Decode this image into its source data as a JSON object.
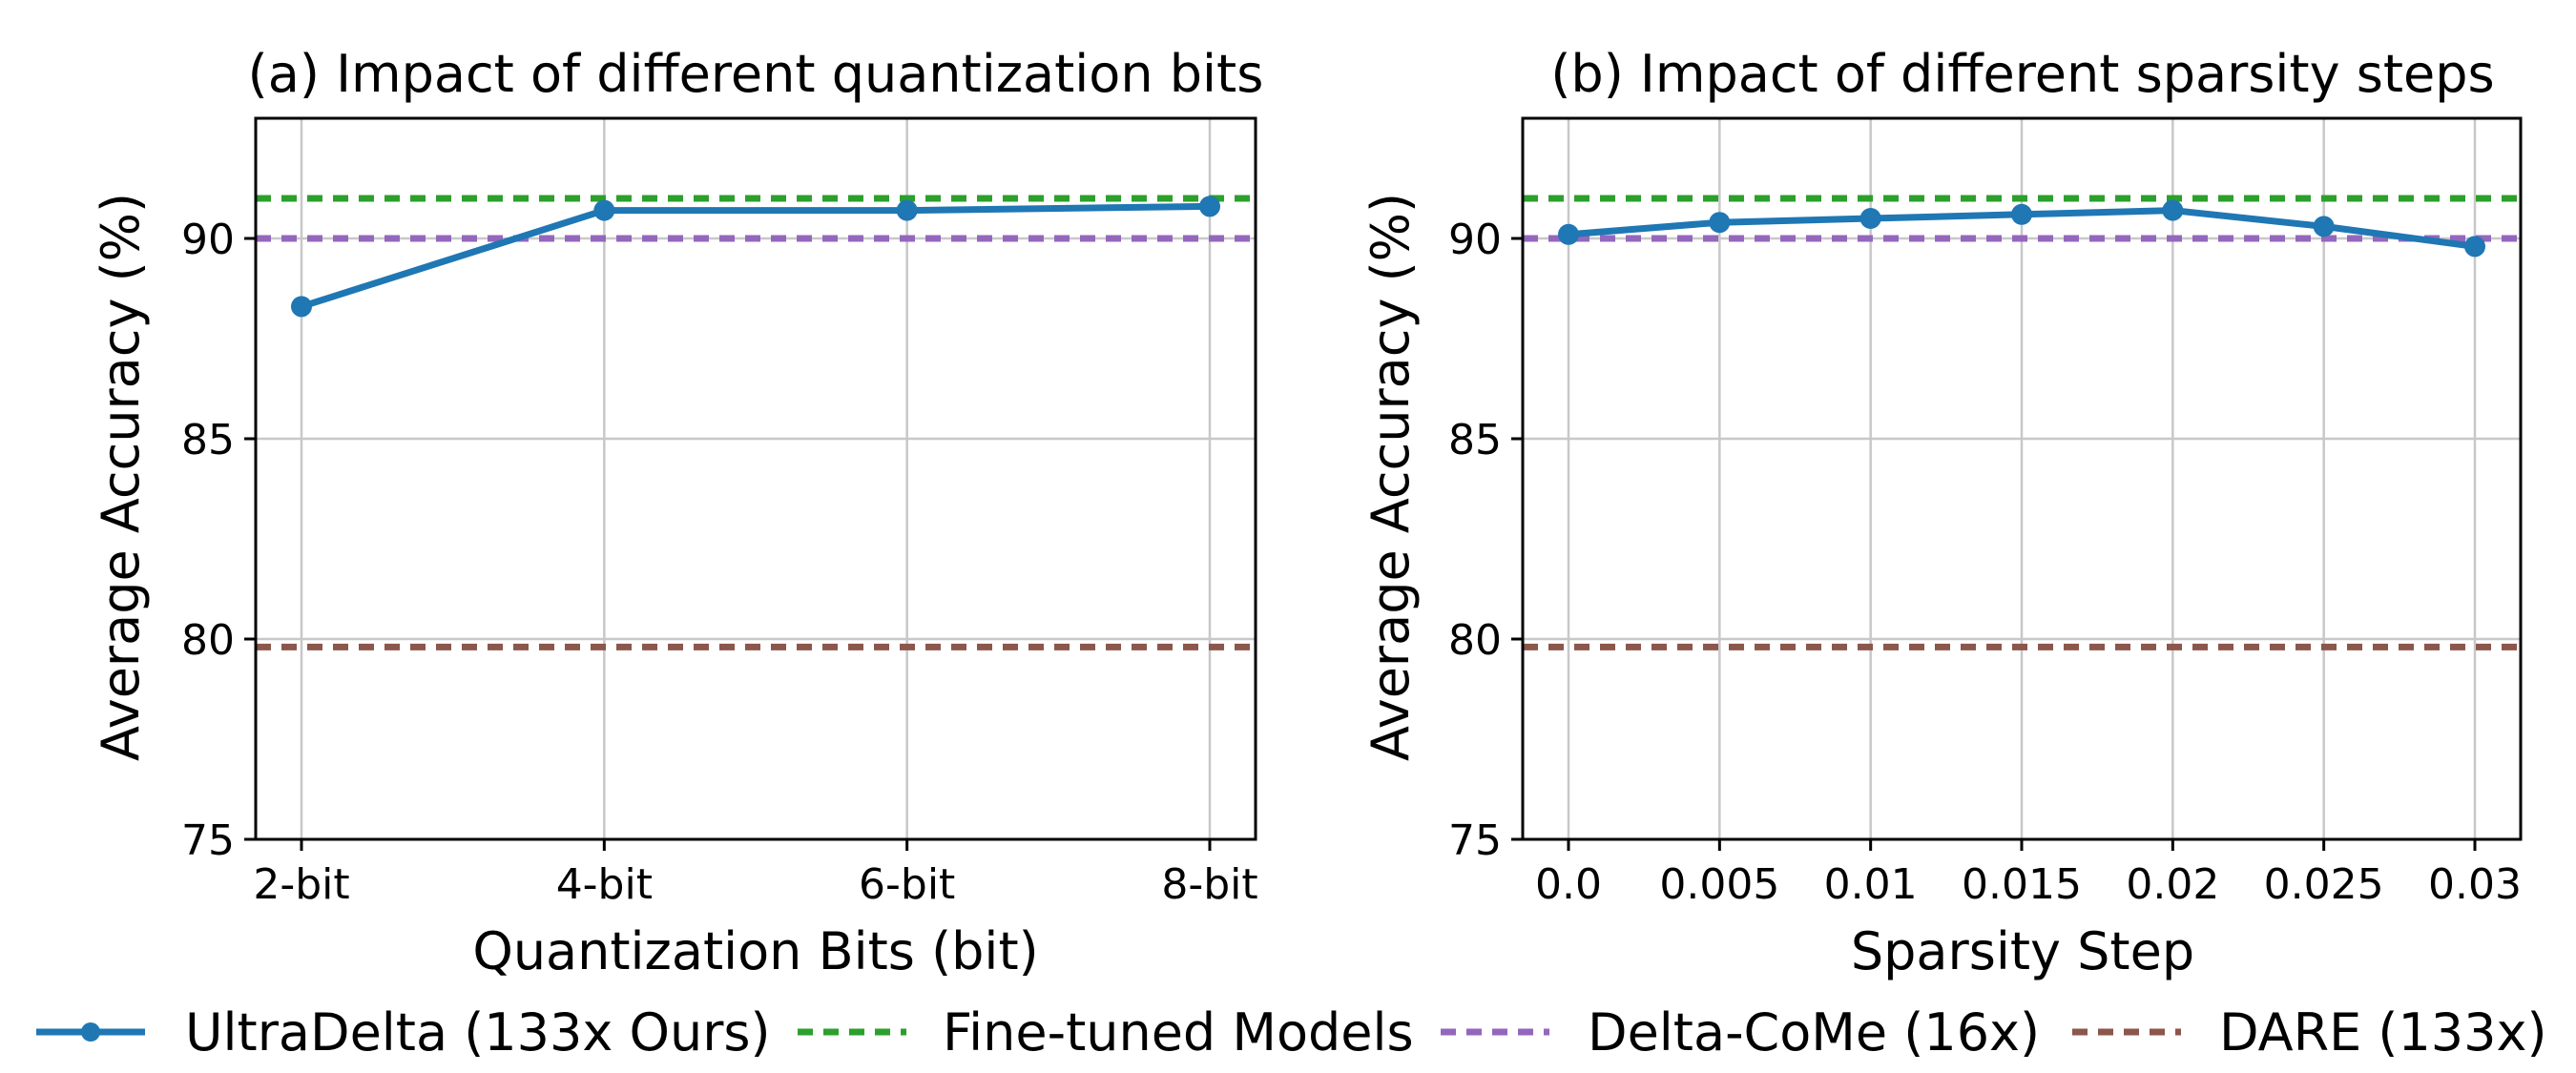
{
  "chart_data": [
    {
      "type": "line",
      "title": "(a) Impact of different quantization bits",
      "xlabel": "Quantization Bits (bit)",
      "ylabel": "Average Accuracy (%)",
      "categories": [
        "2-bit",
        "4-bit",
        "6-bit",
        "8-bit"
      ],
      "ylim": [
        75,
        93
      ],
      "yticks": [
        75,
        80,
        85,
        90
      ],
      "grid": true,
      "series": [
        {
          "name": "UltraDelta (133x Ours)",
          "values": [
            88.3,
            90.7,
            90.7,
            90.8
          ]
        }
      ],
      "baselines": [
        {
          "name": "Fine-tuned Models",
          "value": 91.0
        },
        {
          "name": "Delta-CoMe (16x)",
          "value": 90.0
        },
        {
          "name": "DARE (133x)",
          "value": 79.8
        }
      ]
    },
    {
      "type": "line",
      "title": "(b) Impact of different sparsity steps",
      "xlabel": "Sparsity Step",
      "ylabel": "Average Accuracy (%)",
      "categories": [
        "0.0",
        "0.005",
        "0.01",
        "0.015",
        "0.02",
        "0.025",
        "0.03"
      ],
      "ylim": [
        75,
        93
      ],
      "yticks": [
        75,
        80,
        85,
        90
      ],
      "grid": true,
      "series": [
        {
          "name": "UltraDelta (133x Ours)",
          "values": [
            90.1,
            90.4,
            90.5,
            90.6,
            90.7,
            90.3,
            89.8
          ]
        }
      ],
      "baselines": [
        {
          "name": "Fine-tuned Models",
          "value": 91.0
        },
        {
          "name": "Delta-CoMe (16x)",
          "value": 90.0
        },
        {
          "name": "DARE (133x)",
          "value": 79.8
        }
      ]
    }
  ],
  "legend": {
    "placement": "bottom-center",
    "entries": [
      {
        "label": "UltraDelta (133x Ours)",
        "color": "#1f77b4",
        "style": "solid-marker"
      },
      {
        "label": "Fine-tuned Models",
        "color": "#2ca02c",
        "style": "dashed"
      },
      {
        "label": "Delta-CoMe (16x)",
        "color": "#9467bd",
        "style": "dashed"
      },
      {
        "label": "DARE (133x)",
        "color": "#8c564b",
        "style": "dashed"
      }
    ]
  },
  "colors": {
    "series": "#1f77b4",
    "finetuned": "#2ca02c",
    "deltacome": "#9467bd",
    "dare": "#8c564b"
  }
}
